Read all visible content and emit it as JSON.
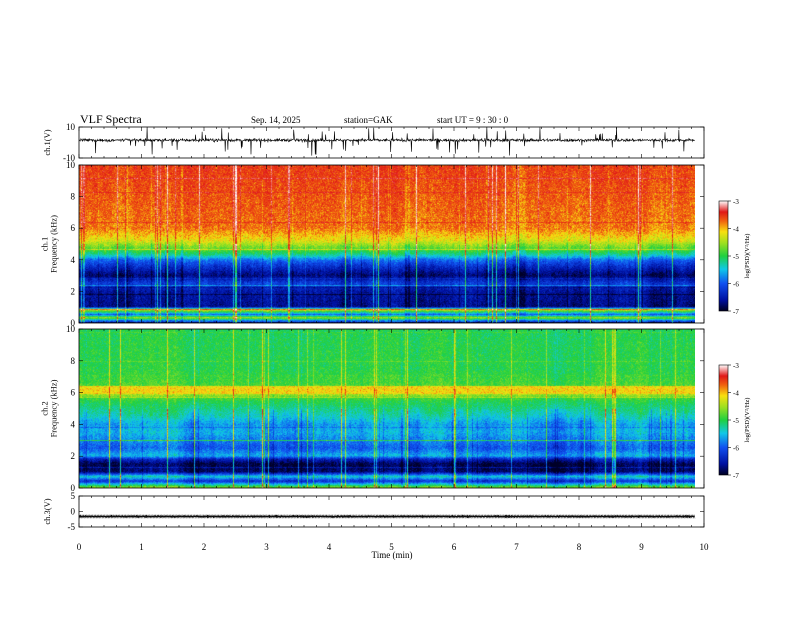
{
  "header": {
    "title": "VLF  Spectra",
    "date": "Sep. 14, 2025",
    "station": "station=GAK",
    "start_ut": "start  UT  =   9  : 30 : 0"
  },
  "chart_data": [
    {
      "type": "line",
      "name": "ch1-waveform",
      "ylabel": "ch.1(V)",
      "yticks": [
        "10",
        "-10"
      ],
      "ylim": [
        -10,
        10
      ],
      "xlim": [
        0,
        9.85
      ],
      "baseline": 1.5,
      "noise_amplitude": 2,
      "spike_extent": [
        -10,
        10
      ]
    },
    {
      "type": "heatmap",
      "name": "ch1-spectrogram",
      "ylabel": "ch.1\nFrequency  (kHz)",
      "ylabel_lines": [
        "ch.1",
        "Frequency  (kHz)"
      ],
      "yticks": [
        "0",
        "2",
        "4",
        "6",
        "8",
        "10"
      ],
      "ylim": [
        0,
        10
      ],
      "xlim": [
        0,
        9.85
      ],
      "colorbar": {
        "label": "log(PSD)(V²/Hz)",
        "ticks": [
          "-3",
          "-4",
          "-5",
          "-6",
          "-7"
        ],
        "range": [
          -7,
          -3
        ]
      },
      "profile_kHz_log": [
        [
          0.0,
          -6.8
        ],
        [
          0.3,
          -4.5
        ],
        [
          0.5,
          -6.0
        ],
        [
          0.8,
          -4.4
        ],
        [
          1.0,
          -6.7
        ],
        [
          2.0,
          -6.6
        ],
        [
          2.5,
          -6.2
        ],
        [
          3.0,
          -6.8
        ],
        [
          3.6,
          -6.3
        ],
        [
          4.0,
          -5.9
        ],
        [
          4.3,
          -5.3
        ],
        [
          4.7,
          -4.8
        ],
        [
          5.2,
          -4.3
        ],
        [
          6.0,
          -3.95
        ],
        [
          8.0,
          -3.85
        ],
        [
          10.0,
          -3.75
        ]
      ]
    },
    {
      "type": "heatmap",
      "name": "ch2-spectrogram",
      "ylabel": "ch.2\nFrequency  (kHz)",
      "ylabel_lines": [
        "ch.2",
        "Frequency  (kHz)"
      ],
      "yticks": [
        "0",
        "2",
        "4",
        "6",
        "8",
        "10"
      ],
      "ylim": [
        0,
        10
      ],
      "xlim": [
        0,
        9.85
      ],
      "colorbar": {
        "label": "log(PSD)(V²/Hz)",
        "ticks": [
          "-3",
          "-4",
          "-5",
          "-6",
          "-7"
        ],
        "range": [
          -7,
          -3
        ]
      },
      "profile_kHz_log": [
        [
          0.0,
          -4.6
        ],
        [
          0.4,
          -6.3
        ],
        [
          0.7,
          -5.4
        ],
        [
          1.0,
          -6.8
        ],
        [
          1.5,
          -6.9
        ],
        [
          1.8,
          -6.4
        ],
        [
          2.0,
          -5.6
        ],
        [
          2.5,
          -6.0
        ],
        [
          3.0,
          -5.8
        ],
        [
          3.5,
          -5.6
        ],
        [
          4.0,
          -5.7
        ],
        [
          4.5,
          -5.4
        ],
        [
          5.0,
          -5.2
        ],
        [
          5.5,
          -5.0
        ],
        [
          6.0,
          -4.35
        ],
        [
          6.5,
          -4.85
        ],
        [
          7.5,
          -5.0
        ],
        [
          8.5,
          -5.0
        ],
        [
          10.0,
          -5.05
        ]
      ]
    },
    {
      "type": "line",
      "name": "ch3-waveform",
      "ylabel": "ch.3(V)",
      "yticks": [
        "5",
        "0",
        "-5"
      ],
      "ylim": [
        -5,
        5
      ],
      "xlim": [
        0,
        9.85
      ],
      "baseline": -1.6,
      "noise_amplitude": 0.25
    }
  ],
  "xaxis": {
    "label": "Time  (min)",
    "ticks": [
      "0",
      "1",
      "2",
      "3",
      "4",
      "5",
      "6",
      "7",
      "8",
      "9",
      "10"
    ],
    "range": [
      0,
      10
    ]
  },
  "colors": {
    "high": "#e8201a",
    "mid_high": "#f0e010",
    "mid": "#20d040",
    "mid_low": "#10a8e8",
    "low": "#0818a8",
    "lowest": "#000040"
  }
}
